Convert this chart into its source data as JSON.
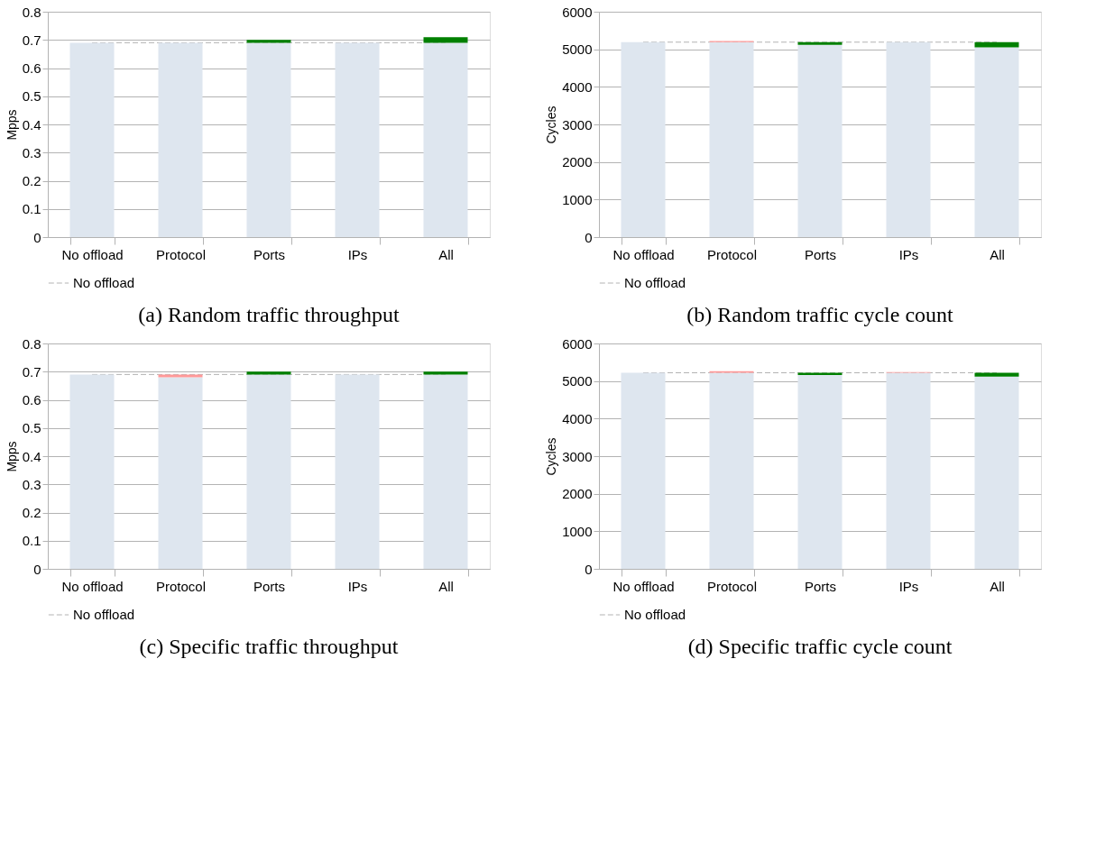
{
  "chart_data": [
    {
      "type": "bar",
      "title": "(a) Random traffic throughput",
      "ylabel": "Mpps",
      "categories": [
        "No offload",
        "Protocol",
        "Ports",
        "IPs",
        "All"
      ],
      "stacked": true,
      "series": [
        {
          "color": "#dee6ef",
          "values": [
            0.69,
            0.69,
            0.69,
            0.69,
            0.69
          ]
        },
        {
          "color": "#008000",
          "values": [
            null,
            null,
            0.01,
            null,
            0.02
          ]
        },
        {
          "color": "#ff9999",
          "values": [
            null,
            null,
            null,
            null,
            null
          ]
        }
      ],
      "ylim": [
        0,
        0.8
      ],
      "yticks": [
        0,
        0.1,
        0.2,
        0.3,
        0.4,
        0.5,
        0.6,
        0.7,
        0.8
      ],
      "grid": "y",
      "legend": "bottom",
      "ref_lines": [
        {
          "axis": "y",
          "value": 0.69,
          "label": "No offload",
          "color": "#b3b3b3",
          "line_style": "dashed"
        }
      ]
    },
    {
      "type": "bar",
      "title": "(b) Random traffic cycle count",
      "ylabel": "Cycles",
      "categories": [
        "No offload",
        "Protocol",
        "Ports",
        "IPs",
        "All"
      ],
      "stacked": true,
      "series": [
        {
          "color": "#dee6ef",
          "values": [
            5190,
            5190,
            5120,
            5190,
            5050
          ]
        },
        {
          "color": "#008000",
          "values": [
            null,
            null,
            70,
            null,
            140
          ]
        },
        {
          "color": "#ff9999",
          "values": [
            null,
            30,
            null,
            null,
            null
          ]
        }
      ],
      "ylim": [
        0,
        6000
      ],
      "yticks": [
        0,
        1000,
        2000,
        3000,
        4000,
        5000,
        6000
      ],
      "grid": "y",
      "legend": "bottom",
      "ref_lines": [
        {
          "axis": "y",
          "value": 5190,
          "label": "No offload",
          "color": "#b3b3b3",
          "line_style": "dashed"
        }
      ]
    },
    {
      "type": "bar",
      "title": "(c) Specific traffic throughput",
      "ylabel": "Mpps",
      "categories": [
        "No offload",
        "Protocol",
        "Ports",
        "IPs",
        "All"
      ],
      "stacked": true,
      "series": [
        {
          "color": "#dee6ef",
          "values": [
            0.69,
            0.68,
            0.69,
            0.69,
            0.69
          ]
        },
        {
          "color": "#008000",
          "values": [
            null,
            null,
            0.01,
            null,
            0.01
          ]
        },
        {
          "color": "#ff9999",
          "values": [
            null,
            0.01,
            null,
            null,
            null
          ]
        }
      ],
      "ylim": [
        0,
        0.8
      ],
      "yticks": [
        0,
        0.1,
        0.2,
        0.3,
        0.4,
        0.5,
        0.6,
        0.7,
        0.8
      ],
      "grid": "y",
      "legend": "bottom",
      "ref_lines": [
        {
          "axis": "y",
          "value": 0.69,
          "label": "No offload",
          "color": "#b3b3b3",
          "line_style": "dashed"
        }
      ]
    },
    {
      "type": "bar",
      "title": "(d) Specific traffic cycle count",
      "ylabel": "Cycles",
      "categories": [
        "No offload",
        "Protocol",
        "Ports",
        "IPs",
        "All"
      ],
      "stacked": true,
      "series": [
        {
          "color": "#dee6ef",
          "values": [
            5220,
            5220,
            5160,
            5220,
            5120
          ]
        },
        {
          "color": "#008000",
          "values": [
            null,
            null,
            60,
            null,
            100
          ]
        },
        {
          "color": "#ff9999",
          "values": [
            null,
            40,
            null,
            20,
            null
          ]
        }
      ],
      "ylim": [
        0,
        6000
      ],
      "yticks": [
        0,
        1000,
        2000,
        3000,
        4000,
        5000,
        6000
      ],
      "grid": "y",
      "legend": "bottom",
      "ref_lines": [
        {
          "axis": "y",
          "value": 5220,
          "label": "No offload",
          "color": "#b3b3b3",
          "line_style": "dashed"
        }
      ]
    }
  ]
}
